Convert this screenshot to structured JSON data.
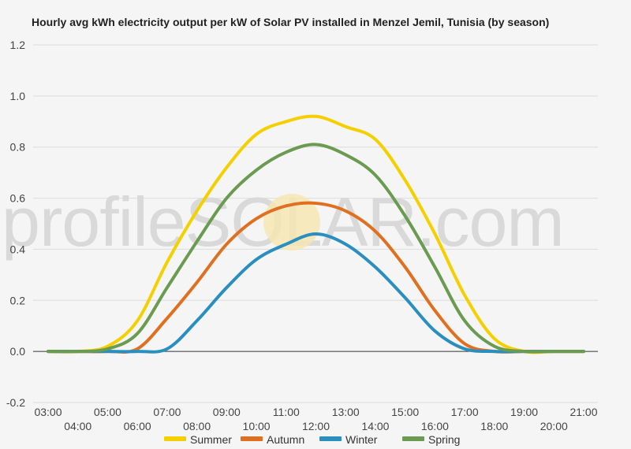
{
  "chart_data": {
    "type": "line",
    "title": "Hourly avg kWh electricity output per kW of Solar PV installed in Menzel Jemil, Tunisia (by season)",
    "xlabel": "",
    "ylabel": "",
    "ylim": [
      -0.2,
      1.2
    ],
    "yticks": [
      "-0.2",
      "0.0",
      "0.2",
      "0.4",
      "0.6",
      "0.8",
      "1.0",
      "1.2"
    ],
    "ytick_values": [
      -0.2,
      0.0,
      0.2,
      0.4,
      0.6,
      0.8,
      1.0,
      1.2
    ],
    "x": [
      "03:00",
      "04:00",
      "05:00",
      "06:00",
      "07:00",
      "08:00",
      "09:00",
      "10:00",
      "11:00",
      "12:00",
      "13:00",
      "14:00",
      "15:00",
      "16:00",
      "17:00",
      "18:00",
      "19:00",
      "20:00",
      "21:00"
    ],
    "grid": true,
    "legend_position": "bottom",
    "watermark": "profileSOLAR.com",
    "series": [
      {
        "name": "Summer",
        "color": "#f5d000",
        "values": [
          0.0,
          0.0,
          0.02,
          0.12,
          0.35,
          0.55,
          0.72,
          0.85,
          0.9,
          0.92,
          0.88,
          0.83,
          0.67,
          0.46,
          0.22,
          0.05,
          0.0,
          0.0,
          0.0
        ]
      },
      {
        "name": "Autumn",
        "color": "#e07020",
        "values": [
          0.0,
          0.0,
          0.0,
          0.01,
          0.13,
          0.27,
          0.42,
          0.52,
          0.57,
          0.58,
          0.55,
          0.47,
          0.33,
          0.16,
          0.03,
          0.0,
          0.0,
          0.0,
          0.0
        ]
      },
      {
        "name": "Winter",
        "color": "#2a8fbf",
        "values": [
          0.0,
          0.0,
          0.0,
          0.0,
          0.01,
          0.12,
          0.25,
          0.36,
          0.42,
          0.46,
          0.42,
          0.33,
          0.21,
          0.08,
          0.01,
          0.0,
          0.0,
          0.0,
          0.0
        ]
      },
      {
        "name": "Spring",
        "color": "#6a9b50",
        "values": [
          0.0,
          0.0,
          0.01,
          0.07,
          0.25,
          0.43,
          0.6,
          0.71,
          0.78,
          0.81,
          0.77,
          0.69,
          0.53,
          0.33,
          0.12,
          0.02,
          0.0,
          0.0,
          0.0
        ]
      }
    ]
  }
}
